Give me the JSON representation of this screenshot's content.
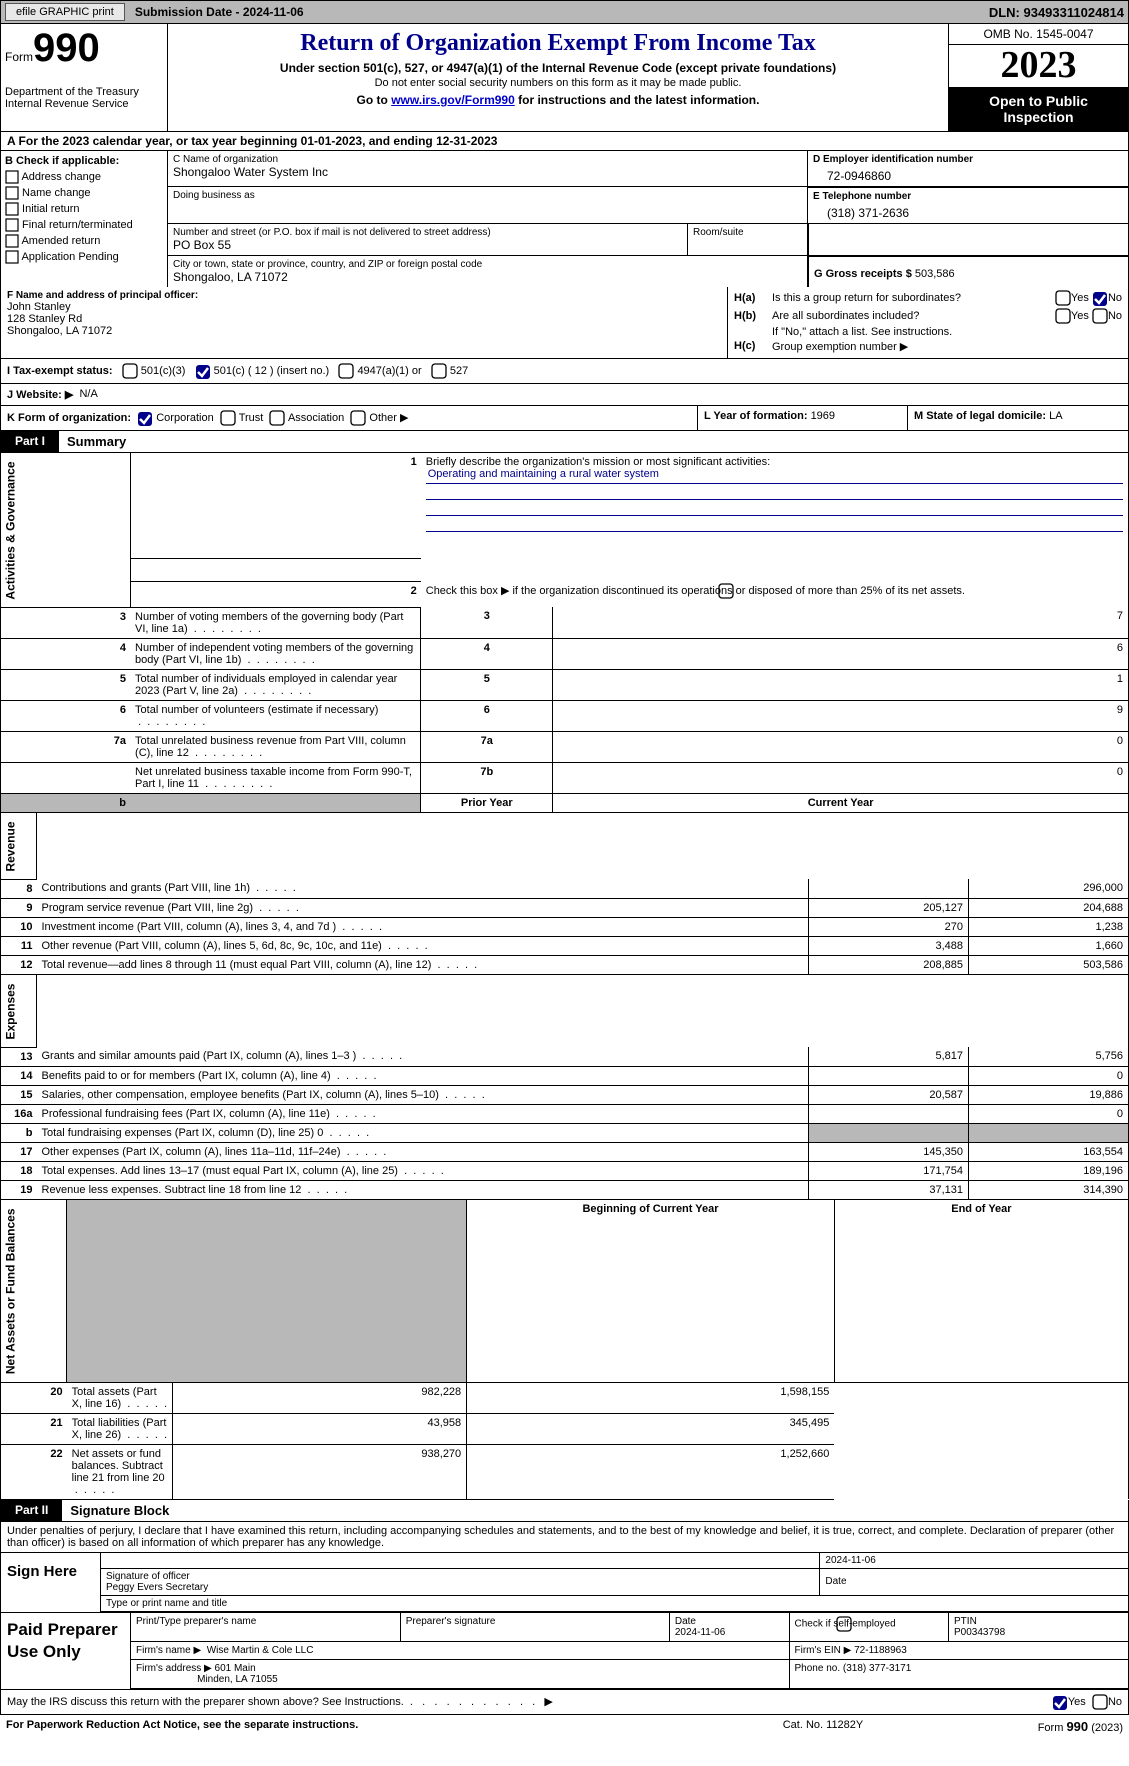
{
  "topbar": {
    "efile": "efile GRAPHIC print",
    "subdate_label": "Submission Date - ",
    "subdate": "2024-11-06",
    "dln_label": "DLN: ",
    "dln": "93493311024814"
  },
  "header": {
    "form_label": "Form",
    "form_num": "990",
    "dept": "Department of the Treasury\nInternal Revenue Service",
    "title": "Return of Organization Exempt From Income Tax",
    "subtitle": "Under section 501(c), 527, or 4947(a)(1) of the Internal Revenue Code (except private foundations)",
    "note": "Do not enter social security numbers on this form as it may be made public.",
    "goto": "Go to ",
    "goto_link": "www.irs.gov/Form990",
    "goto_tail": " for instructions and the latest information.",
    "omb": "OMB No. 1545-0047",
    "year": "2023",
    "open": "Open to Public Inspection"
  },
  "line_a": {
    "pre": "A For the 2023 calendar year, or tax year beginning ",
    "begin": "01-01-2023",
    "mid": ", and ending ",
    "end": "12-31-2023"
  },
  "box_b": {
    "label": "B Check if applicable:",
    "opts": [
      "Address change",
      "Name change",
      "Initial return",
      "Final return/terminated",
      "Amended return",
      "Application Pending"
    ]
  },
  "box_c": {
    "name_label": "C Name of organization",
    "name": "Shongaloo Water System Inc",
    "dba_label": "Doing business as",
    "dba": "",
    "addr_label": "Number and street (or P.O. box if mail is not delivered to street address)",
    "addr": "PO Box 55",
    "room_label": "Room/suite",
    "city_label": "City or town, state or province, country, and ZIP or foreign postal code",
    "city": "Shongaloo, LA  71072"
  },
  "box_d": {
    "label": "D Employer identification number",
    "val": "72-0946860"
  },
  "box_e": {
    "label": "E Telephone number",
    "val": "(318) 371-2636"
  },
  "box_g": {
    "label": "G Gross receipts $ ",
    "val": "503,586"
  },
  "box_f": {
    "label": "F  Name and address of principal officer:",
    "name": "John Stanley",
    "addr1": "128 Stanley Rd",
    "addr2": "Shongaloo, LA  71072"
  },
  "box_h": {
    "a_label": "H(a)",
    "a_txt": "Is this a group return for subordinates?",
    "a_yes": "Yes",
    "a_no": "No",
    "b_label": "H(b)",
    "b_txt": "Are all subordinates included?",
    "b_note": "If \"No,\" attach a list. See instructions.",
    "c_label": "H(c)",
    "c_txt": "Group exemption number ▶"
  },
  "box_i": {
    "label": "I  Tax-exempt status:",
    "o1": "501(c)(3)",
    "o2": "501(c) ( 12 ) (insert no.)",
    "o3": "4947(a)(1) or",
    "o4": "527"
  },
  "box_j": {
    "label": "J  Website: ▶",
    "val": "N/A"
  },
  "box_k": {
    "label": "K Form of organization:",
    "o1": "Corporation",
    "o2": "Trust",
    "o3": "Association",
    "o4": "Other ▶"
  },
  "box_l": {
    "label": "L Year of formation: ",
    "val": "1969"
  },
  "box_m": {
    "label": "M State of legal domicile: ",
    "val": "LA"
  },
  "part1": {
    "tag": "Part I",
    "title": "Summary"
  },
  "summary": {
    "l1_label": "Briefly describe the organization's mission or most significant activities:",
    "l1_val": "Operating and maintaining a rural water system",
    "l2": "Check this box ▶        if  the organization discontinued its operations or disposed of more than 25% of its net assets.",
    "rows_a": [
      {
        "n": "3",
        "d": "Number of voting members of the governing body (Part VI, line 1a)",
        "box": "3",
        "v": "7"
      },
      {
        "n": "4",
        "d": "Number of independent voting members of the governing body (Part VI, line 1b)",
        "box": "4",
        "v": "6"
      },
      {
        "n": "5",
        "d": "Total number of individuals employed in calendar year 2023 (Part V, line 2a)",
        "box": "5",
        "v": "1"
      },
      {
        "n": "6",
        "d": "Total number of volunteers (estimate if necessary)",
        "box": "6",
        "v": "9"
      },
      {
        "n": "7a",
        "d": "Total unrelated business revenue from Part VIII, column (C), line 12",
        "box": "7a",
        "v": "0"
      },
      {
        "n": "",
        "d": "Net unrelated business taxable income from Form 990-T, Part I, line 11",
        "box": "7b",
        "v": "0"
      }
    ],
    "py_label": "Prior Year",
    "cy_label": "Current Year",
    "rows_rev": [
      {
        "n": "8",
        "d": "Contributions and grants (Part VIII, line 1h)",
        "py": "",
        "cy": "296,000"
      },
      {
        "n": "9",
        "d": "Program service revenue (Part VIII, line 2g)",
        "py": "205,127",
        "cy": "204,688"
      },
      {
        "n": "10",
        "d": "Investment income (Part VIII, column (A), lines 3, 4, and 7d )",
        "py": "270",
        "cy": "1,238"
      },
      {
        "n": "11",
        "d": "Other revenue (Part VIII, column (A), lines 5, 6d, 8c, 9c, 10c, and 11e)",
        "py": "3,488",
        "cy": "1,660"
      },
      {
        "n": "12",
        "d": "Total revenue—add lines 8 through 11 (must equal Part VIII, column (A), line 12)",
        "py": "208,885",
        "cy": "503,586"
      }
    ],
    "rows_exp": [
      {
        "n": "13",
        "d": "Grants and similar amounts paid (Part IX, column (A), lines 1–3 )",
        "py": "5,817",
        "cy": "5,756"
      },
      {
        "n": "14",
        "d": "Benefits paid to or for members (Part IX, column (A), line 4)",
        "py": "",
        "cy": "0"
      },
      {
        "n": "15",
        "d": "Salaries, other compensation, employee benefits (Part IX, column (A), lines 5–10)",
        "py": "20,587",
        "cy": "19,886"
      },
      {
        "n": "16a",
        "d": "Professional fundraising fees (Part IX, column (A), line 11e)",
        "py": "",
        "cy": "0"
      },
      {
        "n": "b",
        "d": "Total fundraising expenses (Part IX, column (D), line 25) 0",
        "py": "grey",
        "cy": "grey"
      },
      {
        "n": "17",
        "d": "Other expenses (Part IX, column (A), lines 11a–11d, 11f–24e)",
        "py": "145,350",
        "cy": "163,554"
      },
      {
        "n": "18",
        "d": "Total expenses. Add lines 13–17 (must equal Part IX, column (A), line 25)",
        "py": "171,754",
        "cy": "189,196"
      },
      {
        "n": "19",
        "d": "Revenue less expenses. Subtract line 18 from line 12",
        "py": "37,131",
        "cy": "314,390"
      }
    ],
    "bcy_label": "Beginning of Current Year",
    "eoy_label": "End of Year",
    "rows_net": [
      {
        "n": "20",
        "d": "Total assets (Part X, line 16)",
        "py": "982,228",
        "cy": "1,598,155"
      },
      {
        "n": "21",
        "d": "Total liabilities (Part X, line 26)",
        "py": "43,958",
        "cy": "345,495"
      },
      {
        "n": "22",
        "d": "Net assets or fund balances. Subtract line 21 from line 20",
        "py": "938,270",
        "cy": "1,252,660"
      }
    ],
    "vlabs": {
      "gov": "Activities & Governance",
      "rev": "Revenue",
      "exp": "Expenses",
      "net": "Net Assets or Fund Balances"
    }
  },
  "part2": {
    "tag": "Part II",
    "title": "Signature Block"
  },
  "sig": {
    "decl": "Under penalties of perjury, I declare that I have examined this return, including accompanying schedules and statements, and to the best of my knowledge and belief, it is true, correct, and complete. Declaration of preparer (other than officer) is based on all information of which preparer has any knowledge.",
    "sign_here": "Sign Here",
    "sig_off": "Signature of officer",
    "date_l": "Date",
    "date": "2024-11-06",
    "name_title": "Peggy Evers Secretary",
    "type_l": "Type or print name and title"
  },
  "prep": {
    "label": "Paid Preparer Use Only",
    "pn_l": "Print/Type preparer's name",
    "ps_l": "Preparer's signature",
    "dt_l": "Date",
    "dt": "2024-11-06",
    "chk_l": "Check         if self-employed",
    "ptin_l": "PTIN",
    "ptin": "P00343798",
    "fn_l": "Firm's name   ▶",
    "fn": "Wise Martin & Cole LLC",
    "fein_l": "Firm's EIN ▶",
    "fein": "72-1188963",
    "fa_l": "Firm's address ▶",
    "fa1": "601 Main",
    "fa2": "Minden, LA  71055",
    "ph_l": "Phone no. ",
    "ph": "(318) 377-3171"
  },
  "discuss": {
    "txt": "May the IRS discuss this return with the preparer shown above? See Instructions.",
    "yes": "Yes",
    "no": "No"
  },
  "footer": {
    "l": "For Paperwork Reduction Act Notice, see the separate instructions.",
    "c": "Cat. No. 11282Y",
    "r": "Form 990 (2023)"
  }
}
